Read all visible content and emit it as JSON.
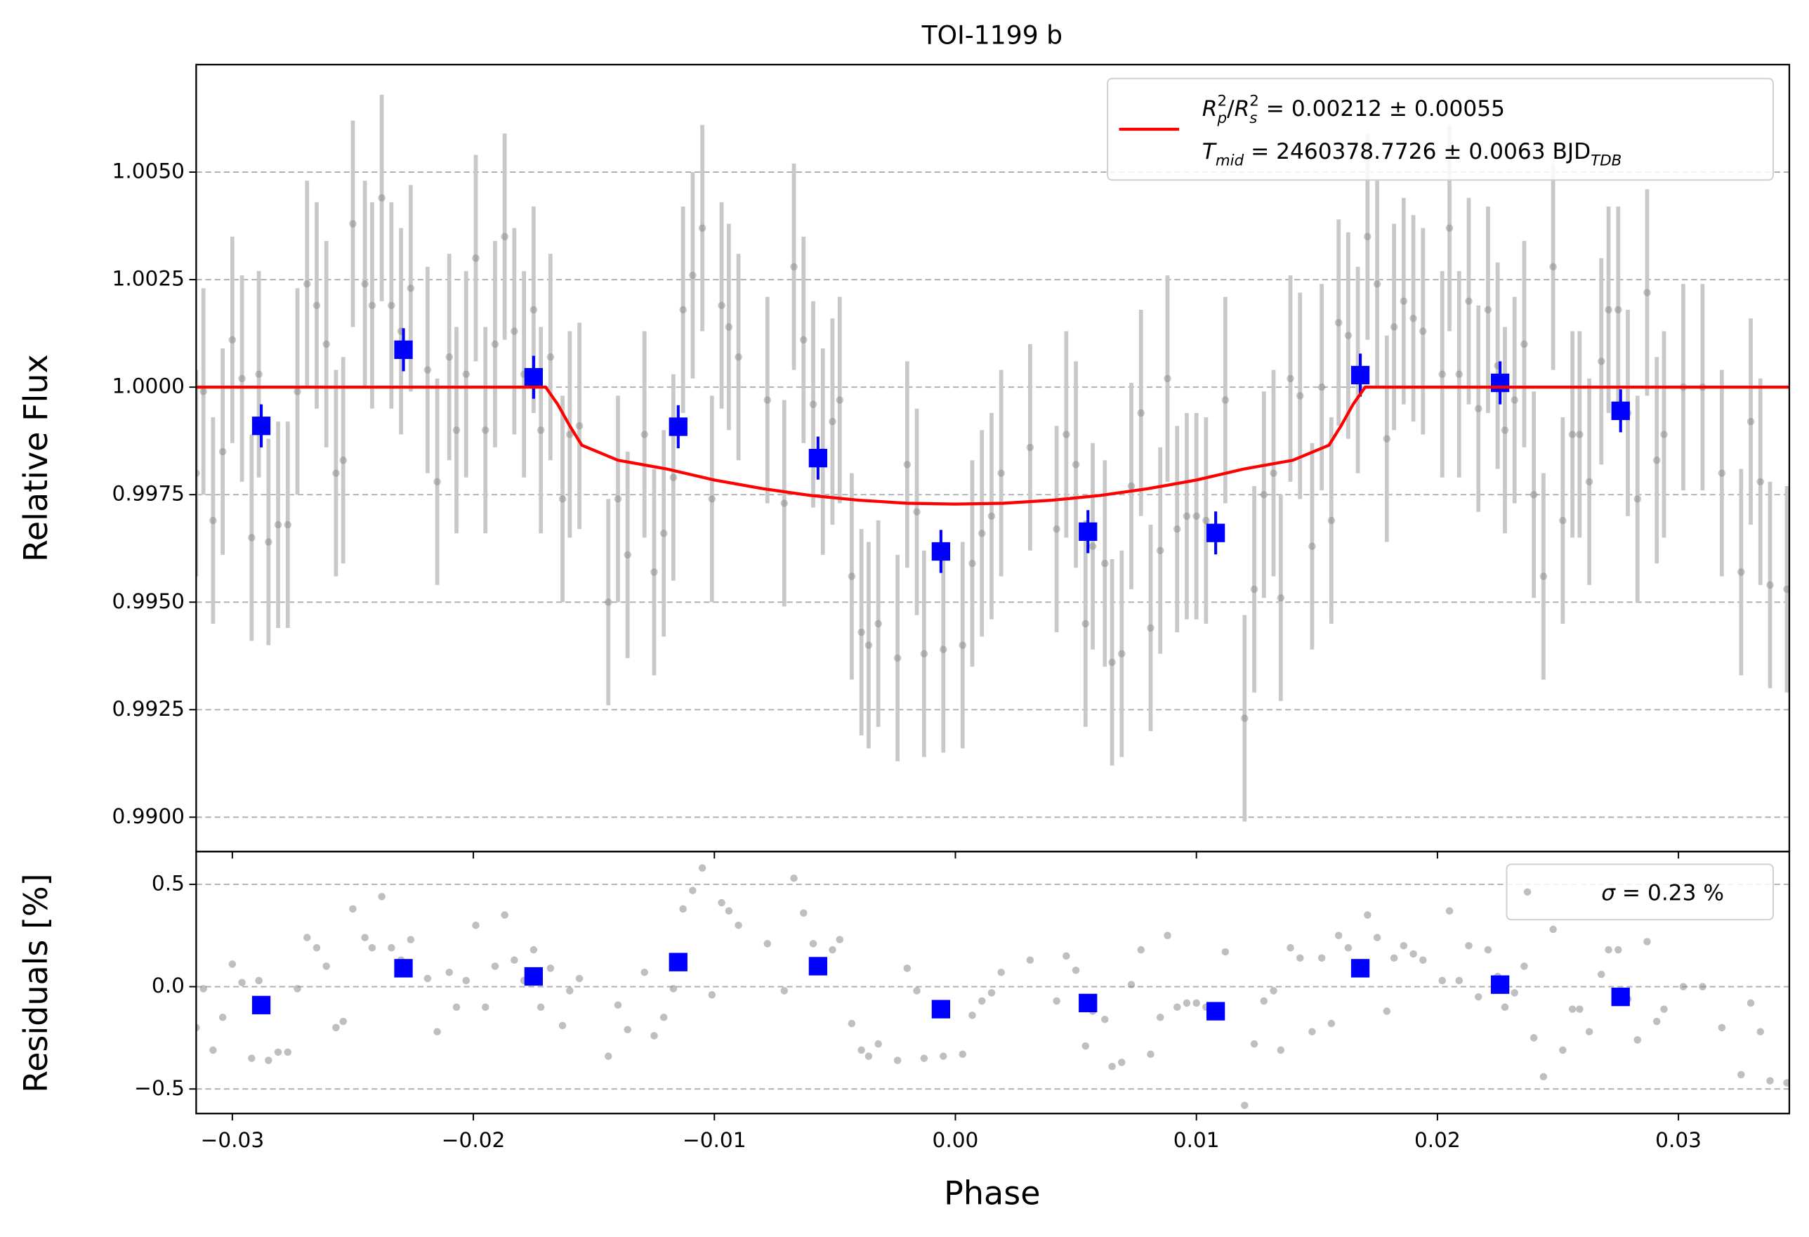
{
  "chart_data": [
    {
      "type": "scatter",
      "title": "TOI-1199 b",
      "ylabel": "Relative Flux",
      "xlim": [
        -0.0315,
        0.0346
      ],
      "ylim": [
        0.9892,
        1.0075
      ],
      "yticks": [
        {
          "value": 0.99,
          "label": "0.9900"
        },
        0.9925,
        {
          "value": 0.995,
          "label": "0.9950"
        },
        0.9975,
        {
          "value": 1,
          "label": "1.0000"
        },
        1.0025,
        {
          "value": 1.005,
          "label": "1.0050"
        }
      ],
      "grid": "y",
      "legend": "upper right",
      "series": [
        {
          "color": "#808080",
          "alpha": 0.45,
          "marker": "circle",
          "error": 0.0024,
          "x": [
            -0.0315,
            -0.0312,
            -0.0308,
            -0.0304,
            -0.03,
            -0.0296,
            -0.0292,
            -0.0289,
            -0.0285,
            -0.0281,
            -0.0277,
            -0.0273,
            -0.0269,
            -0.0265,
            -0.0261,
            -0.0257,
            -0.0254,
            -0.025,
            -0.0245,
            -0.0242,
            -0.0238,
            -0.0234,
            -0.023,
            -0.0226,
            -0.0219,
            -0.0215,
            -0.021,
            -0.0207,
            -0.0203,
            -0.0199,
            -0.0195,
            -0.0191,
            -0.0187,
            -0.0183,
            -0.0179,
            -0.0175,
            -0.0172,
            -0.0168,
            -0.0163,
            -0.016,
            -0.0156,
            -0.0144,
            -0.014,
            -0.0136,
            -0.0129,
            -0.0125,
            -0.0121,
            -0.0117,
            -0.0113,
            -0.0109,
            -0.0105,
            -0.0101,
            -0.0097,
            -0.0094,
            -0.009,
            -0.0078,
            -0.0071,
            -0.0067,
            -0.0063,
            -0.0059,
            -0.0055,
            -0.0051,
            -0.0048,
            -0.0043,
            -0.0039,
            -0.0036,
            -0.0032,
            -0.0024,
            -0.002,
            -0.0016,
            -0.0013,
            -0.0005,
            0.0003,
            0.0007,
            0.0011,
            0.0015,
            0.0019,
            0.0031,
            0.0042,
            0.0046,
            0.005,
            0.0054,
            0.0057,
            0.0062,
            0.0065,
            0.0069,
            0.0073,
            0.0077,
            0.0081,
            0.0085,
            0.0088,
            0.0092,
            0.0096,
            0.01,
            0.0104,
            0.0112,
            0.012,
            0.0124,
            0.0128,
            0.0132,
            0.0135,
            0.0139,
            0.0143,
            0.0148,
            0.0152,
            0.0156,
            0.0159,
            0.0163,
            0.0167,
            0.0171,
            0.0175,
            0.0179,
            0.0182,
            0.0186,
            0.019,
            0.0194,
            0.0202,
            0.0205,
            0.0209,
            0.0213,
            0.0217,
            0.0221,
            0.0225,
            0.0228,
            0.0232,
            0.0236,
            0.024,
            0.0244,
            0.0248,
            0.0252,
            0.0256,
            0.0259,
            0.0263,
            0.0268,
            0.0271,
            0.0275,
            0.0279,
            0.0283,
            0.0287,
            0.0291,
            0.0294,
            0.0302,
            0.031,
            0.0318,
            0.0326,
            0.033,
            0.0334,
            0.0338,
            0.0345
          ],
          "values": [
            0.998,
            0.9999,
            0.9969,
            0.9985,
            1.0011,
            1.0002,
            0.9965,
            1.0003,
            0.9964,
            0.9968,
            0.9968,
            0.9999,
            1.0024,
            1.0019,
            1.001,
            0.998,
            0.9983,
            1.0038,
            1.0024,
            1.0019,
            1.0044,
            1.0019,
            1.0013,
            1.0023,
            1.0004,
            0.9978,
            1.0007,
            0.999,
            1.0003,
            1.003,
            0.999,
            1.001,
            1.0035,
            1.0013,
            1.0003,
            1.0018,
            0.999,
            1.0007,
            0.9974,
            0.9989,
            0.9991,
            0.995,
            0.9974,
            0.9961,
            0.9989,
            0.9957,
            0.9966,
            0.9979,
            1.0018,
            1.0026,
            1.0037,
            0.9974,
            1.0019,
            1.0014,
            1.0007,
            0.9997,
            0.9973,
            1.0028,
            1.0011,
            0.9996,
            0.9985,
            0.9992,
            0.9997,
            0.9956,
            0.9943,
            0.994,
            0.9945,
            0.9937,
            0.9982,
            0.9971,
            0.9938,
            0.9939,
            0.994,
            0.9959,
            0.9966,
            0.997,
            0.998,
            0.9986,
            0.9967,
            0.9989,
            0.9982,
            0.9945,
            0.9963,
            0.9959,
            0.9936,
            0.9938,
            0.9977,
            0.9994,
            0.9944,
            0.9962,
            1.0002,
            0.9967,
            0.997,
            0.997,
            0.9969,
            0.9997,
            0.9923,
            0.9953,
            0.9975,
            0.998,
            0.9951,
            1.0002,
            0.9998,
            0.9963,
            1.0,
            0.9969,
            1.0015,
            1.0012,
            1.0004,
            1.0035,
            1.0024,
            0.9988,
            1.0014,
            1.002,
            1.0016,
            1.0013,
            1.0003,
            1.0037,
            1.0003,
            1.002,
            0.9995,
            1.0018,
            1.0005,
            0.999,
            0.9997,
            1.001,
            0.9975,
            0.9956,
            1.0028,
            0.9969,
            0.9989,
            0.9989,
            0.9978,
            1.0006,
            1.0018,
            1.0018,
            0.9994,
            0.9974,
            1.0022,
            0.9983,
            0.9989,
            1.0,
            1.0,
            0.998,
            0.9957,
            0.9992,
            0.9978,
            0.9954,
            0.9953
          ]
        },
        {
          "color": "#0000ff",
          "alpha": 1,
          "marker": "square",
          "error": 0.0005,
          "x": [
            -0.0288,
            -0.0229,
            -0.0175,
            -0.0115,
            -0.0057,
            -0.0006,
            0.0055,
            0.0108,
            0.0168,
            0.0226,
            0.0276
          ],
          "values": [
            0.9991,
            1.00087,
            1.00023,
            0.99908,
            0.99835,
            0.99618,
            0.99664,
            0.99661,
            1.00028,
            1.0001,
            0.99945
          ]
        },
        {
          "color": "#ff0000",
          "marker": "line",
          "name_parts": [
            [
              {
                "text": "R",
                "style": "italic"
              },
              {
                "text": "p",
                "style": "italic-sub"
              },
              {
                "text": "2",
                "style": "sup"
              },
              {
                "text": "/",
                "style": "normal"
              },
              {
                "text": "R",
                "style": "italic"
              },
              {
                "text": "s",
                "style": "italic-sub"
              },
              {
                "text": "2",
                "style": "sup"
              },
              {
                "text": " = 0.00212 ± 0.00055",
                "style": "normal"
              }
            ],
            [
              {
                "text": "T",
                "style": "italic"
              },
              {
                "text": "mid",
                "style": "italic-sub"
              },
              {
                "text": " = 2460378.7726 ± 0.0063 BJD",
                "style": "normal"
              },
              {
                "text": "TDB",
                "style": "italic-sub"
              }
            ]
          ],
          "x": [
            -0.0315,
            -0.017,
            -0.0165,
            -0.016,
            -0.0155,
            -0.014,
            -0.012,
            -0.01,
            -0.008,
            -0.006,
            -0.004,
            -0.002,
            0,
            0.002,
            0.004,
            0.006,
            0.008,
            0.01,
            0.012,
            0.014,
            0.0155,
            0.016,
            0.0165,
            0.017,
            0.0346
          ],
          "values": [
            1,
            1,
            0.9996,
            0.9991,
            0.99865,
            0.9983,
            0.9981,
            0.99784,
            0.99764,
            0.99748,
            0.99737,
            0.9973,
            0.99728,
            0.9973,
            0.99737,
            0.99748,
            0.99764,
            0.99784,
            0.9981,
            0.9983,
            0.99865,
            0.9991,
            0.9996,
            1,
            1
          ]
        }
      ]
    },
    {
      "type": "scatter",
      "ylabel": "Residuals [%]",
      "xlabel": "Phase",
      "xlim": [
        -0.0315,
        0.0346
      ],
      "ylim": [
        -0.62,
        0.66
      ],
      "xticks": [
        {
          "value": -0.03,
          "label": "−0.03"
        },
        {
          "value": -0.02,
          "label": "−0.02"
        },
        {
          "value": -0.01,
          "label": "−0.01"
        },
        {
          "value": 0,
          "label": "0.00"
        },
        0.01,
        0.02,
        0.03
      ],
      "yticks": [
        {
          "value": -0.5,
          "label": "−0.5"
        },
        {
          "value": 0,
          "label": "0.0"
        },
        0.5
      ],
      "grid": "y",
      "legend": "upper right",
      "series": [
        {
          "color": "#808080",
          "alpha": 0.5,
          "marker": "circle",
          "name_parts": [
            [
              {
                "text": "σ",
                "style": "italic"
              },
              {
                "text": " = 0.23 %",
                "style": "normal"
              }
            ]
          ],
          "x": [
            -0.0315,
            -0.0312,
            -0.0308,
            -0.0304,
            -0.03,
            -0.0296,
            -0.0292,
            -0.0289,
            -0.0285,
            -0.0281,
            -0.0277,
            -0.0273,
            -0.0269,
            -0.0265,
            -0.0261,
            -0.0257,
            -0.0254,
            -0.025,
            -0.0245,
            -0.0242,
            -0.0238,
            -0.0234,
            -0.023,
            -0.0226,
            -0.0219,
            -0.0215,
            -0.021,
            -0.0207,
            -0.0203,
            -0.0199,
            -0.0195,
            -0.0191,
            -0.0187,
            -0.0183,
            -0.0179,
            -0.0175,
            -0.0172,
            -0.0168,
            -0.0163,
            -0.016,
            -0.0156,
            -0.0144,
            -0.014,
            -0.0136,
            -0.0129,
            -0.0125,
            -0.0121,
            -0.0117,
            -0.0113,
            -0.0109,
            -0.0105,
            -0.0101,
            -0.0097,
            -0.0094,
            -0.009,
            -0.0078,
            -0.0071,
            -0.0067,
            -0.0063,
            -0.0059,
            -0.0055,
            -0.0051,
            -0.0048,
            -0.0043,
            -0.0039,
            -0.0036,
            -0.0032,
            -0.0024,
            -0.002,
            -0.0016,
            -0.0013,
            -0.0005,
            0.0003,
            0.0007,
            0.0011,
            0.0015,
            0.0019,
            0.0031,
            0.0042,
            0.0046,
            0.005,
            0.0054,
            0.0057,
            0.0062,
            0.0065,
            0.0069,
            0.0073,
            0.0077,
            0.0081,
            0.0085,
            0.0088,
            0.0092,
            0.0096,
            0.01,
            0.0104,
            0.0112,
            0.012,
            0.0124,
            0.0128,
            0.0132,
            0.0135,
            0.0139,
            0.0143,
            0.0148,
            0.0152,
            0.0156,
            0.0159,
            0.0163,
            0.0167,
            0.0171,
            0.0175,
            0.0179,
            0.0182,
            0.0186,
            0.019,
            0.0194,
            0.0202,
            0.0205,
            0.0209,
            0.0213,
            0.0217,
            0.0221,
            0.0225,
            0.0228,
            0.0232,
            0.0236,
            0.024,
            0.0244,
            0.0248,
            0.0252,
            0.0256,
            0.0259,
            0.0263,
            0.0268,
            0.0271,
            0.0275,
            0.0279,
            0.0283,
            0.0287,
            0.0291,
            0.0294,
            0.0302,
            0.031,
            0.0318,
            0.0326,
            0.033,
            0.0334,
            0.0338,
            0.0345
          ],
          "values": [
            -0.2,
            -0.01,
            -0.31,
            -0.15,
            0.11,
            0.02,
            -0.35,
            0.03,
            -0.36,
            -0.32,
            -0.32,
            -0.01,
            0.24,
            0.19,
            0.1,
            -0.2,
            -0.17,
            0.38,
            0.24,
            0.19,
            0.44,
            0.19,
            0.13,
            0.23,
            0.04,
            -0.22,
            0.07,
            -0.1,
            0.03,
            0.3,
            -0.1,
            0.1,
            0.35,
            0.13,
            0.03,
            0.18,
            -0.1,
            0.09,
            -0.19,
            -0.02,
            0.04,
            -0.34,
            -0.09,
            -0.21,
            0.07,
            -0.24,
            -0.15,
            -0.01,
            0.38,
            0.47,
            0.58,
            -0.04,
            0.41,
            0.37,
            0.3,
            0.21,
            -0.02,
            0.53,
            0.36,
            0.21,
            0.11,
            0.18,
            0.23,
            -0.18,
            -0.31,
            -0.34,
            -0.28,
            -0.36,
            0.09,
            -0.02,
            -0.35,
            -0.34,
            -0.33,
            -0.14,
            -0.07,
            -0.03,
            0.07,
            0.13,
            -0.07,
            0.15,
            0.08,
            -0.29,
            -0.12,
            -0.16,
            -0.39,
            -0.37,
            0.01,
            0.18,
            -0.33,
            -0.15,
            0.25,
            -0.1,
            -0.08,
            -0.08,
            -0.1,
            0.17,
            -0.58,
            -0.28,
            -0.07,
            -0.02,
            -0.31,
            0.19,
            0.14,
            -0.22,
            0.14,
            -0.18,
            0.25,
            0.19,
            0.07,
            0.35,
            0.24,
            -0.12,
            0.14,
            0.2,
            0.16,
            0.13,
            0.03,
            0.37,
            0.03,
            0.2,
            -0.05,
            0.18,
            0.05,
            -0.1,
            -0.03,
            0.1,
            -0.25,
            -0.44,
            0.28,
            -0.31,
            -0.11,
            -0.11,
            -0.22,
            0.06,
            0.18,
            0.18,
            -0.06,
            -0.26,
            0.22,
            -0.17,
            -0.11,
            0.0,
            0.0,
            -0.2,
            -0.43,
            -0.08,
            -0.22,
            -0.46,
            -0.47
          ]
        },
        {
          "color": "#0000ff",
          "alpha": 1,
          "marker": "square",
          "x": [
            -0.0288,
            -0.0229,
            -0.0175,
            -0.0115,
            -0.0057,
            -0.0006,
            0.0055,
            0.0108,
            0.0168,
            0.0226,
            0.0276
          ],
          "values": [
            -0.09,
            0.09,
            0.05,
            0.12,
            0.1,
            -0.11,
            -0.08,
            -0.12,
            0.09,
            0.01,
            -0.05
          ]
        }
      ]
    }
  ]
}
